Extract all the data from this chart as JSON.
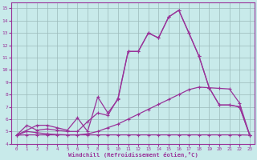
{
  "background_color": "#c8eaea",
  "grid_color": "#9bbaba",
  "line_color": "#993399",
  "xlim": [
    -0.5,
    23.5
  ],
  "ylim": [
    4,
    15.5
  ],
  "xticks": [
    0,
    1,
    2,
    3,
    4,
    5,
    6,
    7,
    8,
    9,
    10,
    11,
    12,
    13,
    14,
    15,
    16,
    17,
    18,
    19,
    20,
    21,
    22,
    23
  ],
  "yticks": [
    4,
    5,
    6,
    7,
    8,
    9,
    10,
    11,
    12,
    13,
    14,
    15
  ],
  "xlabel": "Windchill (Refroidissement éolien,°C)",
  "line1_x": [
    0,
    1,
    2,
    3,
    4,
    5,
    6,
    7,
    8,
    9,
    10,
    11,
    12,
    13,
    14,
    15,
    16,
    17,
    18,
    19,
    20,
    21,
    22,
    23
  ],
  "line1_y": [
    4.7,
    5.5,
    5.1,
    5.2,
    5.1,
    5.0,
    5.0,
    5.8,
    6.5,
    6.3,
    7.7,
    11.5,
    11.5,
    13.0,
    12.6,
    14.3,
    14.85,
    13.0,
    11.1,
    8.55,
    7.15,
    7.15,
    7.0,
    4.7
  ],
  "line2_x": [
    0,
    2,
    3,
    4,
    5,
    6,
    7,
    8,
    9,
    10,
    11,
    12,
    13,
    14,
    15,
    16,
    17,
    18,
    19,
    20,
    21,
    22,
    23
  ],
  "line2_y": [
    4.7,
    5.5,
    5.5,
    5.3,
    5.1,
    6.1,
    5.0,
    7.8,
    6.5,
    7.6,
    11.5,
    11.5,
    13.0,
    12.6,
    14.3,
    14.85,
    13.0,
    11.1,
    8.55,
    7.15,
    7.15,
    7.0,
    4.7
  ],
  "line3_x": [
    0,
    1,
    2,
    3,
    4,
    5,
    6,
    7,
    8,
    9,
    10,
    11,
    12,
    13,
    14,
    15,
    16,
    17,
    18,
    19,
    20,
    21,
    22,
    23
  ],
  "line3_y": [
    4.7,
    5.0,
    4.9,
    4.8,
    4.75,
    4.72,
    4.72,
    4.8,
    5.0,
    5.3,
    5.6,
    6.0,
    6.4,
    6.8,
    7.2,
    7.6,
    8.0,
    8.4,
    8.6,
    8.55,
    8.5,
    8.45,
    7.3,
    4.7
  ],
  "line4_x": [
    0,
    1,
    2,
    3,
    4,
    5,
    6,
    7,
    8,
    9,
    10,
    11,
    12,
    13,
    14,
    15,
    16,
    17,
    18,
    19,
    20,
    21,
    22,
    23
  ],
  "line4_y": [
    4.7,
    4.72,
    4.72,
    4.72,
    4.72,
    4.72,
    4.72,
    4.72,
    4.72,
    4.72,
    4.72,
    4.72,
    4.72,
    4.72,
    4.72,
    4.72,
    4.72,
    4.72,
    4.72,
    4.72,
    4.72,
    4.72,
    4.72,
    4.7
  ]
}
